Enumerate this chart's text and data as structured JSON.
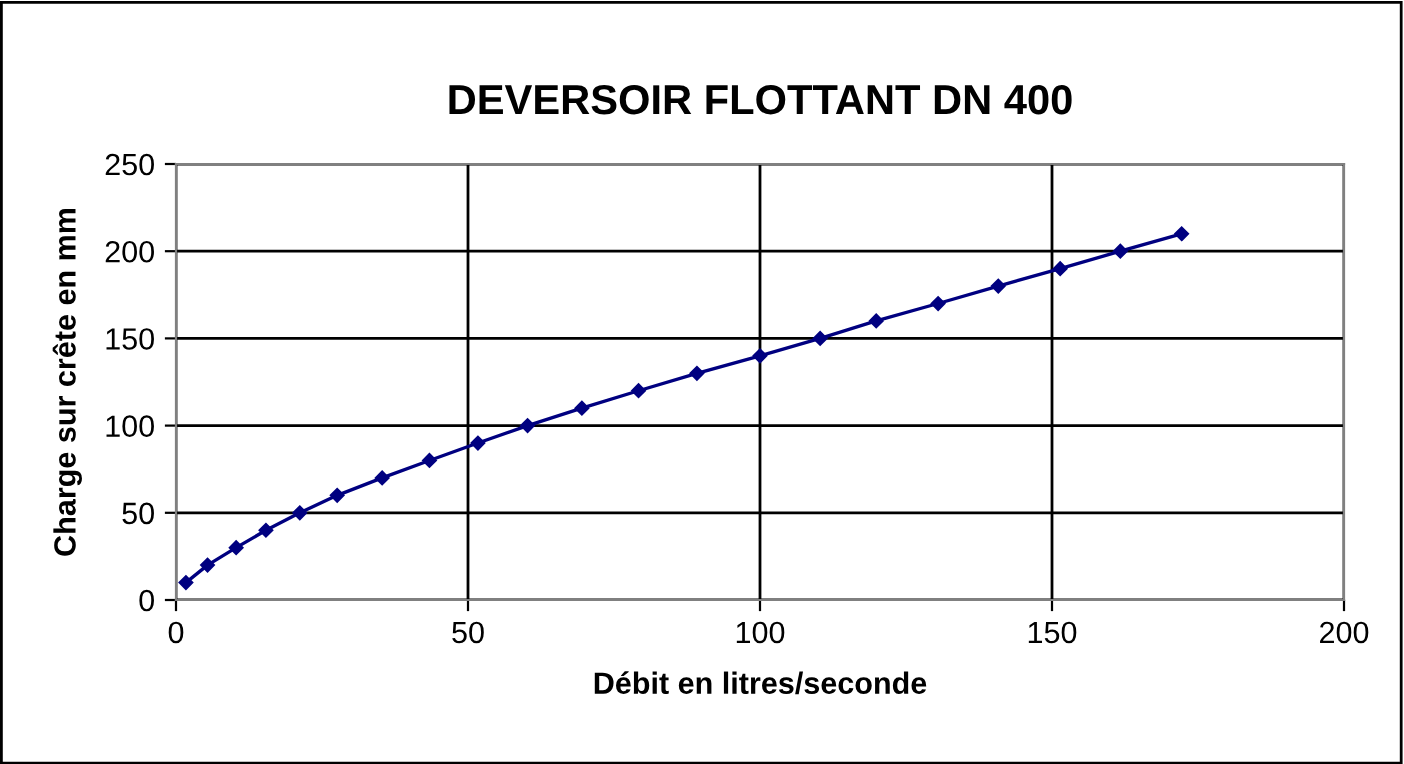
{
  "chart_data": {
    "type": "line",
    "title": "DEVERSOIR FLOTTANT DN 400",
    "xlabel": "Débit en litres/seconde",
    "ylabel": "Charge sur crête en mm",
    "series": [
      {
        "color": "#000080",
        "x": [
          1.7,
          5.4,
          10.3,
          15.4,
          21.2,
          27.6,
          35.3,
          43.4,
          51.7,
          60.2,
          69.5,
          79.2,
          89.2,
          100,
          110.3,
          119.9,
          130.5,
          140.8,
          151.4,
          161.7,
          172.2
        ],
        "values": [
          10,
          20,
          30,
          40,
          50,
          60,
          70,
          80,
          90,
          100,
          110,
          120,
          130,
          140,
          150,
          160,
          170,
          180,
          190,
          200,
          210
        ]
      }
    ],
    "xlim": [
      0,
      200
    ],
    "xticks": [
      0,
      50,
      100,
      150,
      200
    ],
    "ylim": [
      0,
      250
    ],
    "yticks": [
      0,
      50,
      100,
      150,
      200,
      250
    ],
    "grid": true,
    "marker": "diamond",
    "line_style": "solid",
    "legend": false
  }
}
